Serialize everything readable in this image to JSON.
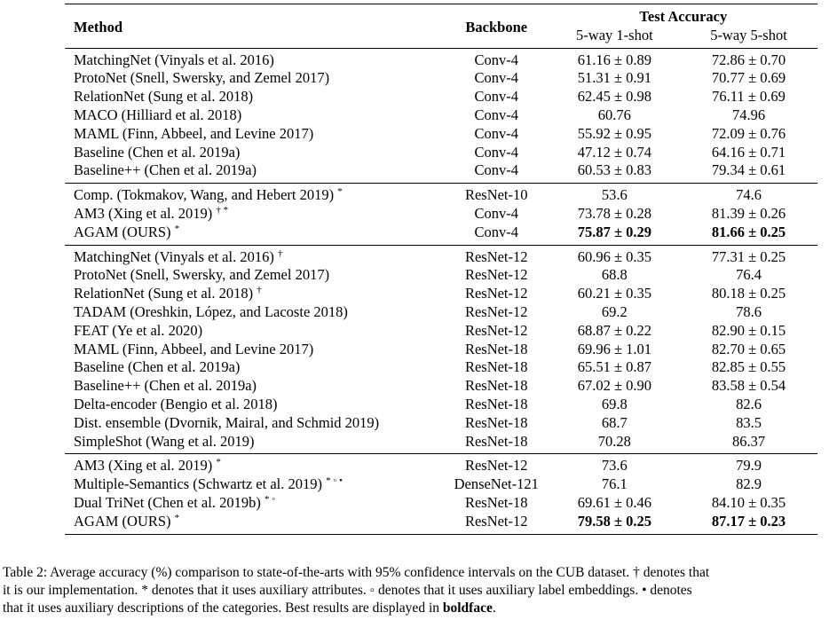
{
  "header": {
    "method": "Method",
    "backbone": "Backbone",
    "test_accuracy": "Test Accuracy",
    "one_shot": "5-way 1-shot",
    "five_shot": "5-way 5-shot"
  },
  "sections": [
    {
      "rows": [
        {
          "method": "MatchingNet (Vinyals et al. 2016)",
          "mark": "",
          "backbone": "Conv-4",
          "one": "61.16 ± 0.89",
          "five": "72.86 ± 0.70",
          "bold": false
        },
        {
          "method": "ProtoNet (Snell, Swersky, and Zemel 2017)",
          "mark": "",
          "backbone": "Conv-4",
          "one": "51.31 ± 0.91",
          "five": "70.77 ± 0.69",
          "bold": false
        },
        {
          "method": "RelationNet (Sung et al. 2018)",
          "mark": "",
          "backbone": "Conv-4",
          "one": "62.45 ± 0.98",
          "five": "76.11 ± 0.69",
          "bold": false
        },
        {
          "method": "MACO (Hilliard et al. 2018)",
          "mark": "",
          "backbone": "Conv-4",
          "one": "60.76",
          "five": "74.96",
          "bold": false
        },
        {
          "method": "MAML (Finn, Abbeel, and Levine 2017)",
          "mark": "",
          "backbone": "Conv-4",
          "one": "55.92 ± 0.95",
          "five": "72.09 ± 0.76",
          "bold": false
        },
        {
          "method": "Baseline (Chen et al. 2019a)",
          "mark": "",
          "backbone": "Conv-4",
          "one": "47.12 ± 0.74",
          "five": "64.16 ± 0.71",
          "bold": false
        },
        {
          "method": "Baseline++ (Chen et al. 2019a)",
          "mark": "",
          "backbone": "Conv-4",
          "one": "60.53 ± 0.83",
          "five": "79.34 ± 0.61",
          "bold": false
        }
      ]
    },
    {
      "rows": [
        {
          "method": "Comp. (Tokmakov, Wang, and Hebert 2019)",
          "mark": "*",
          "backbone": "ResNet-10",
          "one": "53.6",
          "five": "74.6",
          "bold": false
        },
        {
          "method": "AM3 (Xing et al. 2019)",
          "mark": "† *",
          "backbone": "Conv-4",
          "one": "73.78 ± 0.28",
          "five": "81.39 ± 0.26",
          "bold": false
        },
        {
          "method": "AGAM (OURS)",
          "mark": "*",
          "backbone": "Conv-4",
          "one": "75.87 ± 0.29",
          "five": "81.66 ± 0.25",
          "bold": true
        }
      ]
    },
    {
      "rows": [
        {
          "method": "MatchingNet (Vinyals et al. 2016)",
          "mark": "†",
          "backbone": "ResNet-12",
          "one": "60.96 ± 0.35",
          "five": "77.31 ± 0.25",
          "bold": false
        },
        {
          "method": "ProtoNet (Snell, Swersky, and Zemel 2017)",
          "mark": "",
          "backbone": "ResNet-12",
          "one": "68.8",
          "five": "76.4",
          "bold": false
        },
        {
          "method": "RelationNet (Sung et al. 2018)",
          "mark": "†",
          "backbone": "ResNet-12",
          "one": "60.21 ± 0.35",
          "five": "80.18 ± 0.25",
          "bold": false
        },
        {
          "method": "TADAM (Oreshkin, López, and Lacoste 2018)",
          "mark": "",
          "backbone": "ResNet-12",
          "one": "69.2",
          "five": "78.6",
          "bold": false
        },
        {
          "method": "FEAT (Ye et al. 2020)",
          "mark": "",
          "backbone": "ResNet-12",
          "one": "68.87 ± 0.22",
          "five": "82.90 ± 0.15",
          "bold": false
        },
        {
          "method": "MAML (Finn, Abbeel, and Levine 2017)",
          "mark": "",
          "backbone": "ResNet-18",
          "one": "69.96 ± 1.01",
          "five": "82.70 ± 0.65",
          "bold": false
        },
        {
          "method": "Baseline (Chen et al. 2019a)",
          "mark": "",
          "backbone": "ResNet-18",
          "one": "65.51 ± 0.87",
          "five": "82.85 ± 0.55",
          "bold": false
        },
        {
          "method": "Baseline++ (Chen et al. 2019a)",
          "mark": "",
          "backbone": "ResNet-18",
          "one": "67.02 ± 0.90",
          "five": "83.58 ± 0.54",
          "bold": false
        },
        {
          "method": "Delta-encoder (Bengio et al. 2018)",
          "mark": "",
          "backbone": "ResNet-18",
          "one": "69.8",
          "five": "82.6",
          "bold": false
        },
        {
          "method": "Dist. ensemble (Dvornik, Mairal, and Schmid 2019)",
          "mark": "",
          "backbone": "ResNet-18",
          "one": "68.7",
          "five": "83.5",
          "bold": false
        },
        {
          "method": "SimpleShot (Wang et al. 2019)",
          "mark": "",
          "backbone": "ResNet-18",
          "one": "70.28",
          "five": "86.37",
          "bold": false
        }
      ]
    },
    {
      "rows": [
        {
          "method": "AM3 (Xing et al. 2019)",
          "mark": "*",
          "backbone": "ResNet-12",
          "one": "73.6",
          "five": "79.9",
          "bold": false
        },
        {
          "method": "Multiple-Semantics (Schwartz et al. 2019)",
          "mark": "* ◦ •",
          "backbone": "DenseNet-121",
          "one": "76.1",
          "five": "82.9",
          "bold": false
        },
        {
          "method": "Dual TriNet (Chen et al. 2019b)",
          "mark": "* ◦",
          "backbone": "ResNet-18",
          "one": "69.61 ± 0.46",
          "five": "84.10 ± 0.35",
          "bold": false
        },
        {
          "method": "AGAM (OURS)",
          "mark": "*",
          "backbone": "ResNet-12",
          "one": "79.58 ± 0.25",
          "five": "87.17 ± 0.23",
          "bold": true
        }
      ]
    }
  ],
  "caption": {
    "line1": "Table 2: Average accuracy (%) comparison to state-of-the-arts with 95% confidence intervals on the CUB dataset. † denotes that",
    "line2": "it is our implementation. * denotes that it uses auxiliary attributes. ◦ denotes that it uses auxiliary label embeddings. • denotes",
    "line3_pre": "that it uses auxiliary descriptions of the categories. Best results are displayed in ",
    "line3_bold": "boldface",
    "line3_post": "."
  }
}
